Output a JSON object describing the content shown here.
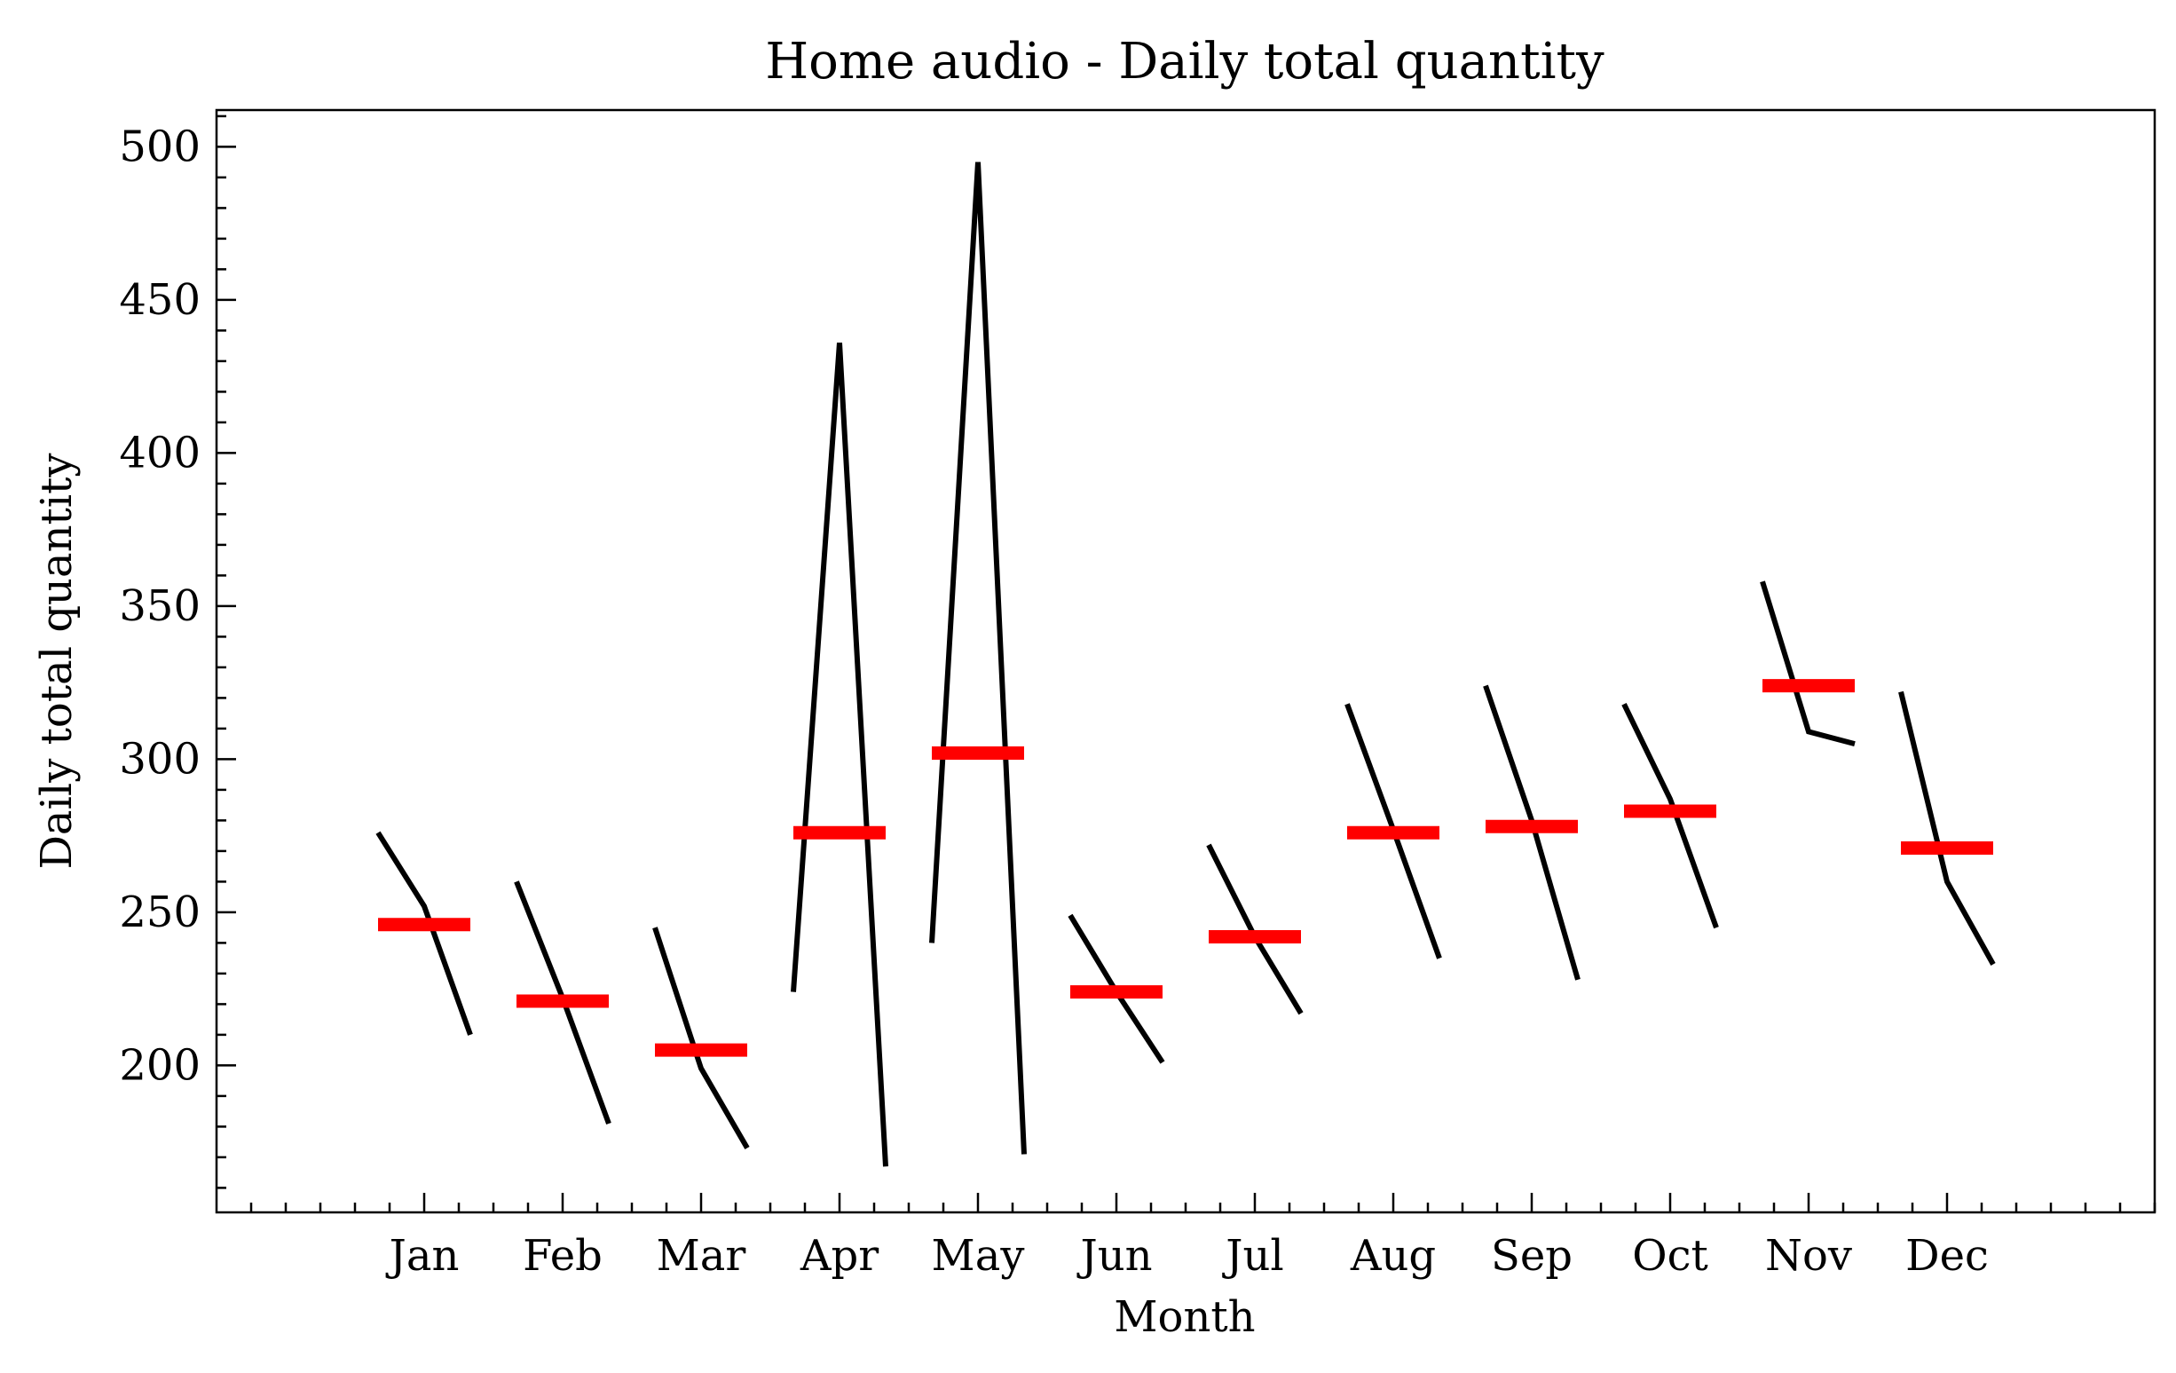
{
  "chart_data": {
    "type": "line",
    "title": "Home audio - Daily total quantity",
    "xlabel": "Month",
    "ylabel": "Daily total quantity",
    "categories": [
      "Jan",
      "Feb",
      "Mar",
      "Apr",
      "May",
      "Jun",
      "Jul",
      "Aug",
      "Sep",
      "Oct",
      "Nov",
      "Dec"
    ],
    "series": [
      {
        "values": [
          [
            276,
            252,
            210
          ],
          [
            260,
            222,
            181
          ],
          [
            245,
            199,
            173
          ],
          [
            224,
            436,
            167
          ],
          [
            240,
            495,
            171
          ],
          [
            249,
            224,
            201
          ],
          [
            272,
            242,
            217
          ],
          [
            318,
            277,
            235
          ],
          [
            324,
            280,
            228
          ],
          [
            318,
            287,
            245
          ],
          [
            358,
            309,
            305
          ],
          [
            322,
            260,
            233
          ]
        ]
      },
      {
        "values": [
          246,
          221,
          205,
          276,
          302,
          224,
          242,
          276,
          278,
          283,
          324,
          271
        ]
      }
    ],
    "yticks": [
      200,
      250,
      300,
      350,
      400,
      450,
      500
    ],
    "ylim": [
      152,
      512
    ],
    "colors": {
      "line": "#000000",
      "mean": "#ff0000"
    },
    "grid": false
  }
}
